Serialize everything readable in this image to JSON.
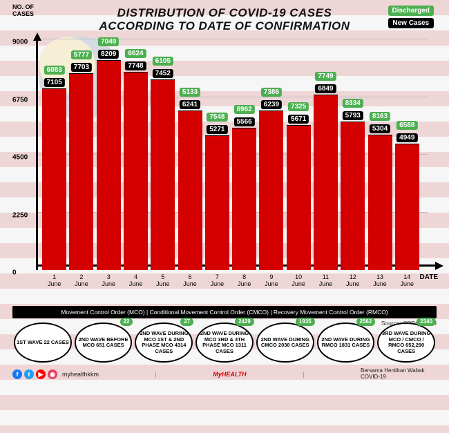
{
  "header": {
    "y_axis_title": "NO. OF\nCASES",
    "title_line1": "DISTRIBUTION OF COVID-19 CASES",
    "title_line2": "ACCORDING TO DATE OF CONFIRMATION",
    "legend_discharged": "Discharged",
    "legend_new": "New Cases",
    "x_axis_title": "DATE"
  },
  "chart": {
    "type": "bar",
    "ylim": [
      0,
      9000
    ],
    "yticks": [
      0,
      2250,
      4500,
      6750,
      9000
    ],
    "bar_color": "#d40000",
    "bar_border_color": "#000000",
    "grid_color": "#bdbdbd",
    "axis_color": "#000000",
    "discharged_label_bg": "#4caf50",
    "new_label_bg": "#000000",
    "label_text_color": "#ffffff",
    "bar_width_ratio": 0.94,
    "categories": [
      {
        "day": "1",
        "month": "June"
      },
      {
        "day": "2",
        "month": "June"
      },
      {
        "day": "3",
        "month": "June"
      },
      {
        "day": "4",
        "month": "June"
      },
      {
        "day": "5",
        "month": "June"
      },
      {
        "day": "6",
        "month": "June"
      },
      {
        "day": "7",
        "month": "June"
      },
      {
        "day": "8",
        "month": "June"
      },
      {
        "day": "9",
        "month": "June"
      },
      {
        "day": "10",
        "month": "June"
      },
      {
        "day": "11",
        "month": "June"
      },
      {
        "day": "12",
        "month": "June"
      },
      {
        "day": "13",
        "month": "June"
      },
      {
        "day": "14",
        "month": "June"
      }
    ],
    "new_cases": [
      7105,
      7703,
      8209,
      7748,
      7452,
      6241,
      5271,
      5566,
      6239,
      5671,
      6849,
      5793,
      5304,
      4949
    ],
    "discharged": [
      6083,
      5777,
      7049,
      6624,
      6105,
      5133,
      7548,
      6962,
      7386,
      7325,
      7749,
      8334,
      8163,
      6588
    ]
  },
  "notes": {
    "text": "Movement Control Order (MCO)  |  Conditional Movement Control Order (CMCO)  |  Recovery Movement Control Order (RMCO)"
  },
  "waves": [
    {
      "label": "1ST WAVE 22 CASES",
      "badge": null
    },
    {
      "label": "2ND WAVE BEFORE MCO 651 CASES",
      "badge": "22"
    },
    {
      "label": "2ND WAVE DURING MCO 1ST & 2ND PHASE MCO 4314 CASES",
      "badge": "27"
    },
    {
      "label": "2ND WAVE DURING MCO 3RD & 4TH PHASE MCO 1311 CASES",
      "badge": "2429"
    },
    {
      "label": "2ND WAVE DURING CMCO 2038 CASES",
      "badge": "1935"
    },
    {
      "label": "2ND WAVE DURING RMCO 1831 CASES",
      "badge": "2562"
    },
    {
      "label": "3RD WAVE DURING MCO / CMCO / RMCO 652,290 CASES",
      "badge": "2340"
    }
  ],
  "footer": {
    "social_handle": "myhealthkkm",
    "logo1": "MyHEALTH",
    "logo2": "Bersama Hentikan Wabak COVID-19",
    "source": "Source: CPRC, MOH",
    "social_colors": {
      "facebook": "#1877f2",
      "twitter": "#1da1f2",
      "youtube": "#ff0000",
      "instagram": "#e4405f"
    }
  }
}
